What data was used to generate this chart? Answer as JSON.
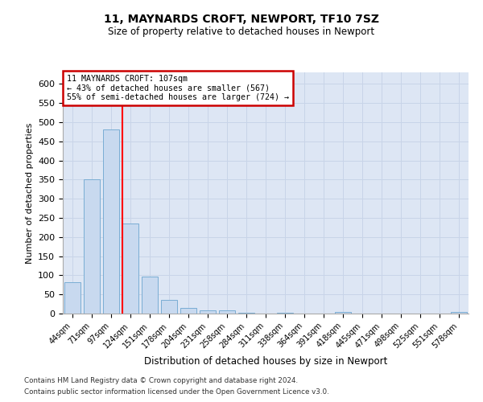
{
  "title1": "11, MAYNARDS CROFT, NEWPORT, TF10 7SZ",
  "title2": "Size of property relative to detached houses in Newport",
  "xlabel": "Distribution of detached houses by size in Newport",
  "ylabel": "Number of detached properties",
  "categories": [
    "44sqm",
    "71sqm",
    "97sqm",
    "124sqm",
    "151sqm",
    "178sqm",
    "204sqm",
    "231sqm",
    "258sqm",
    "284sqm",
    "311sqm",
    "338sqm",
    "364sqm",
    "391sqm",
    "418sqm",
    "445sqm",
    "471sqm",
    "498sqm",
    "525sqm",
    "551sqm",
    "578sqm"
  ],
  "values": [
    82,
    350,
    480,
    235,
    97,
    35,
    15,
    8,
    8,
    3,
    0,
    3,
    0,
    0,
    5,
    0,
    0,
    0,
    0,
    0,
    4
  ],
  "bar_color": "#c8d9ef",
  "bar_edge_color": "#7aadd4",
  "grid_color": "#c8d4e8",
  "background_color": "#dde6f4",
  "red_line_x": 2.58,
  "annotation_line1": "11 MAYNARDS CROFT: 107sqm",
  "annotation_line2": "← 43% of detached houses are smaller (567)",
  "annotation_line3": "55% of semi-detached houses are larger (724) →",
  "annotation_box_color": "#ffffff",
  "annotation_border_color": "#cc0000",
  "ylim": [
    0,
    630
  ],
  "yticks": [
    0,
    50,
    100,
    150,
    200,
    250,
    300,
    350,
    400,
    450,
    500,
    550,
    600
  ],
  "footnote1": "Contains HM Land Registry data © Crown copyright and database right 2024.",
  "footnote2": "Contains public sector information licensed under the Open Government Licence v3.0."
}
